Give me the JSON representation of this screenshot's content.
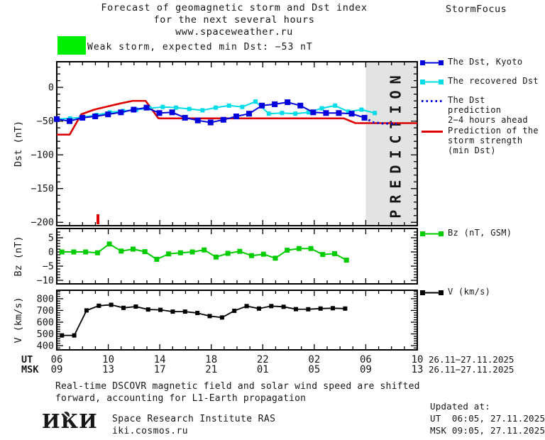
{
  "header": {
    "line1": "Forecast of geomagnetic storm and Dst index",
    "line2": "for the next several hours",
    "line3": "www.spaceweather.ru",
    "brand": "StormFocus"
  },
  "alert": {
    "swatch_color": "#00ee00",
    "text": "Weak storm, expected min Dst: −53 nT"
  },
  "prediction_band": {
    "label": "PREDICTION",
    "fill": "#e3e3e3",
    "text_color": "#c9c9c9",
    "start_hour": 24
  },
  "chart_data": [
    {
      "type": "line",
      "panel": "dst",
      "ylabel": "Dst (nT)",
      "ylim": [
        38,
        -205
      ],
      "yticks": [
        0,
        -50,
        -100,
        -150,
        -200
      ],
      "yminor": 10,
      "x_hours_span": 28,
      "x_start_label": "06 UT 26.11",
      "onset_marker_h": 3.2,
      "series": [
        {
          "id": "storm-strength-prediction",
          "name": "Prediction of the storm strength (min Dst)",
          "color": "#dd0000",
          "width": 2.6,
          "points": [
            [
              0,
              -70
            ],
            [
              1,
              -70
            ],
            [
              1.9,
              -40
            ],
            [
              2.9,
              -33
            ],
            [
              4,
              -28
            ],
            [
              4.9,
              -24
            ],
            [
              5.9,
              -20
            ],
            [
              6.9,
              -20
            ],
            [
              7.9,
              -46
            ],
            [
              22.3,
              -46
            ],
            [
              23.2,
              -53
            ],
            [
              28,
              -53
            ]
          ]
        },
        {
          "id": "recovered-dst",
          "name": "The recovered Dst",
          "color": "#00dde8",
          "width": 2,
          "msize": 6,
          "x_start": 0,
          "x_end": 24.7,
          "values": [
            -47,
            -46,
            -44,
            -41,
            -37,
            -35,
            -33,
            -31,
            -29,
            -30,
            -32,
            -34,
            -30,
            -27,
            -29,
            -21,
            -39,
            -38,
            -39,
            -37,
            -31,
            -27,
            -36,
            -33,
            -38
          ]
        },
        {
          "id": "dst-kyoto",
          "name": "The Dst, Kyoto",
          "color": "#0000dd",
          "width": 2,
          "msize": 8,
          "x_start": 0,
          "x_end": 23.9,
          "values": [
            -47,
            -50,
            -45,
            -43,
            -40,
            -37,
            -33,
            -30,
            -38,
            -37,
            -45,
            -49,
            -52,
            -48,
            -43,
            -39,
            -27,
            -25,
            -22,
            -27,
            -37,
            -38,
            -38,
            -39,
            -45
          ]
        },
        {
          "id": "dst-prediction",
          "name": "The Dst prediction 2−4 hours ahead",
          "color": "#0000dd",
          "width": 3,
          "style": "dotted",
          "points": [
            [
              23.9,
              -45
            ],
            [
              24.6,
              -52
            ],
            [
              25.3,
              -53.5
            ],
            [
              26.4,
              -54
            ]
          ]
        }
      ]
    },
    {
      "type": "line",
      "panel": "bz",
      "ylabel": "Bz (nT)",
      "ylim": [
        8.25,
        -11.25
      ],
      "yticks": [
        5,
        0,
        -5,
        -10
      ],
      "yminor": 1,
      "series": [
        {
          "id": "bz-gsm",
          "name": "Bz (nT, GSM)",
          "color": "#00cc00",
          "width": 2,
          "msize": 7,
          "x_start": 0.4,
          "x_end": 22.5,
          "values": [
            0,
            0,
            0,
            -0.3,
            2.8,
            0.3,
            1.0,
            0.1,
            -2.6,
            -0.7,
            -0.3,
            0,
            0.7,
            -1.8,
            -0.5,
            0.2,
            -1.3,
            -0.8,
            -2.2,
            0.6,
            1.2,
            1.2,
            -0.9,
            -0.6,
            -2.9
          ]
        }
      ]
    },
    {
      "type": "line",
      "panel": "v",
      "ylabel": "V (km/s)",
      "ylim": [
        872,
        364
      ],
      "yticks": [
        800,
        700,
        600,
        500,
        400
      ],
      "yminor": 20,
      "series": [
        {
          "id": "solar-wind-speed",
          "name": "V (km/s)",
          "color": "#000000",
          "width": 1.8,
          "msize": 6,
          "x_start": 0.4,
          "x_end": 22.4,
          "values": [
            487,
            487,
            700,
            740,
            748,
            722,
            733,
            708,
            705,
            690,
            690,
            678,
            652,
            640,
            697,
            737,
            716,
            737,
            731,
            711,
            710,
            716,
            719,
            716
          ]
        }
      ]
    }
  ],
  "x_axis": {
    "row1_label": "UT",
    "row2_label": "MSK",
    "row1_ticks": [
      "06",
      "10",
      "14",
      "18",
      "22",
      "02",
      "06",
      "10"
    ],
    "row2_ticks": [
      "09",
      "13",
      "17",
      "21",
      "01",
      "05",
      "09",
      "13"
    ],
    "row1_date": "26.11−27.11.2025",
    "row2_date": "26.11−27.11.2025"
  },
  "legend": {
    "items": [
      {
        "id": "dst-kyoto",
        "swatch": "line-squares",
        "color": "#0000dd",
        "label_lines": [
          "The Dst, Kyoto"
        ]
      },
      {
        "id": "recovered-dst",
        "swatch": "line-squares",
        "color": "#00dde8",
        "label_lines": [
          "The recovered Dst"
        ]
      },
      {
        "id": "dst-prediction",
        "swatch": "dotted",
        "color": "#0000dd",
        "label_lines": [
          "The Dst prediction",
          "2−4 hours ahead"
        ]
      },
      {
        "id": "storm-strength",
        "swatch": "line",
        "color": "#dd0000",
        "label_lines": [
          "Prediction of the",
          "storm strength",
          "(min Dst)"
        ]
      },
      {
        "id": "bz-gsm",
        "swatch": "line-squares",
        "color": "#00cc00",
        "label_lines": [
          "Bz (nT, GSM)"
        ]
      },
      {
        "id": "solar-wind-speed",
        "swatch": "line-squares",
        "color": "#000000",
        "label_lines": [
          "V (km/s)"
        ]
      }
    ]
  },
  "footnote": {
    "line1": "Real-time DSCOVR magnetic field and solar wind speed are shifted",
    "line2": "forward, accounting for L1-Earth propagation"
  },
  "updated": {
    "title": "Updated at:",
    "line_ut": "UT  06:05, 27.11.2025",
    "line_msk": "MSK 09:05, 27.11.2025"
  },
  "footer": {
    "logo_text": "ИКИ",
    "org": "Space Research Institute RAS",
    "site": "iki.cosmos.ru"
  }
}
